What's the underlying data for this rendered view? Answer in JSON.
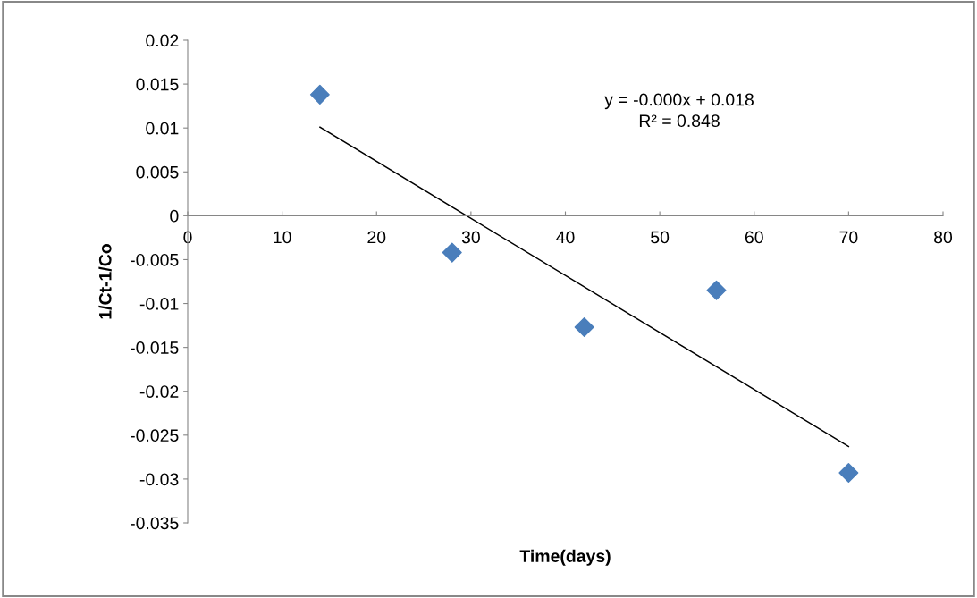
{
  "chart_data": {
    "type": "scatter",
    "xlabel": "Time(days)",
    "ylabel": "1/Ct-1/Co",
    "series": [
      {
        "color": "#4a7ebb",
        "marker": "diamond",
        "x": [
          14,
          28,
          42,
          56,
          70
        ],
        "values": [
          0.0138,
          -0.0042,
          -0.0127,
          -0.0085,
          -0.0293
        ]
      },
      {
        "type": "line",
        "color": "#000000",
        "marker": "none",
        "x": [
          14,
          70
        ],
        "values": [
          0.0101,
          -0.0263
        ]
      }
    ],
    "annotations": [
      "y = -0.000x + 0.018\nR² = 0.848"
    ],
    "xlim": [
      0,
      80
    ],
    "xticks": [
      0,
      10,
      20,
      30,
      40,
      50,
      60,
      70,
      80
    ],
    "ylim": [
      -0.035,
      0.02
    ],
    "yticks": [
      -0.035,
      -0.03,
      -0.025,
      -0.02,
      -0.015,
      -0.01,
      -0.005,
      0,
      0.005,
      0.01,
      0.015,
      0.02
    ],
    "grid": false,
    "legend": false
  }
}
